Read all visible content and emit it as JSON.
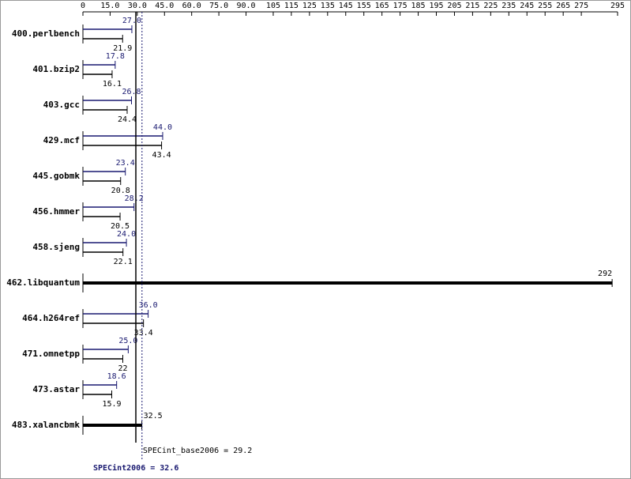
{
  "chart_data": {
    "type": "bar",
    "orientation": "horizontal",
    "categories": [
      "400.perlbench",
      "401.bzip2",
      "403.gcc",
      "429.mcf",
      "445.gobmk",
      "456.hmmer",
      "458.sjeng",
      "462.libquantum",
      "464.h264ref",
      "471.omnetpp",
      "473.astar",
      "483.xalancbmk"
    ],
    "series": [
      {
        "color": "#191970",
        "values": [
          27.0,
          17.8,
          26.8,
          44.0,
          23.4,
          28.2,
          24.0,
          null,
          36.0,
          25.0,
          18.6,
          null
        ],
        "value_labels": [
          "27.0",
          "17.8",
          "26.8",
          "44.0",
          "23.4",
          "28.2",
          "24.0",
          null,
          "36.0",
          "25.0",
          "18.6",
          null
        ]
      },
      {
        "color": "#000000",
        "values": [
          21.9,
          16.1,
          24.4,
          43.4,
          20.8,
          20.5,
          22.1,
          292,
          33.4,
          22.0,
          15.9,
          32.5
        ]
      }
    ],
    "xlim": [
      0,
      295
    ],
    "xticks": [
      0,
      {
        "value": 15,
        "label": "15.0"
      },
      {
        "value": 30,
        "label": "30.0"
      },
      {
        "value": 45,
        "label": "45.0"
      },
      {
        "value": 60,
        "label": "60.0"
      },
      {
        "value": 75,
        "label": "75.0"
      },
      {
        "value": 90,
        "label": "90.0"
      },
      105,
      115,
      125,
      135,
      145,
      155,
      165,
      175,
      185,
      195,
      205,
      215,
      225,
      235,
      245,
      255,
      265,
      275,
      295
    ],
    "base_metric": {
      "label": "SPECint_base2006 = 29.2",
      "value": 29.2,
      "color": "#000000"
    },
    "peak_metric": {
      "label": "SPECint2006 = 32.6",
      "value": 32.6,
      "color": "#191970"
    }
  }
}
